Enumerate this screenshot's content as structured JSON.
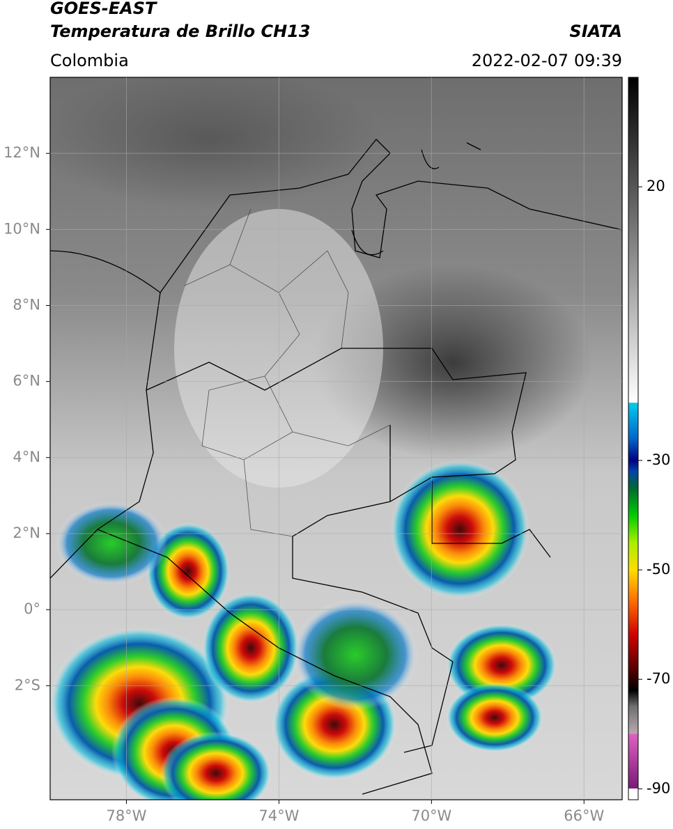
{
  "chart_data": {
    "type": "map",
    "title": "GOES-EAST",
    "subtitle": "Temperatura de Brillo CH13",
    "source": "SIATA",
    "region": "Colombia",
    "timestamp": "2022-02-07 09:39",
    "xlim": [
      -80,
      -65
    ],
    "ylim": [
      -5,
      14
    ],
    "xticks": [
      {
        "value": -78,
        "label": "78°W"
      },
      {
        "value": -74,
        "label": "74°W"
      },
      {
        "value": -70,
        "label": "70°W"
      },
      {
        "value": -66,
        "label": "66°W"
      }
    ],
    "yticks": [
      {
        "value": 12,
        "label": "12°N"
      },
      {
        "value": 10,
        "label": "10°N"
      },
      {
        "value": 8,
        "label": "8°N"
      },
      {
        "value": 6,
        "label": "6°N"
      },
      {
        "value": 4,
        "label": "4°N"
      },
      {
        "value": 2,
        "label": "2°N"
      },
      {
        "value": 0,
        "label": "0°"
      },
      {
        "value": -2,
        "label": "2°S"
      }
    ],
    "grid": true,
    "colorbar": {
      "lim": [
        -92,
        40
      ],
      "ticks": [
        20,
        -30,
        -50,
        -70,
        -90
      ],
      "colors": [
        {
          "value": -92,
          "color": "#ffffff"
        },
        {
          "value": -90,
          "color": "#ffffff"
        },
        {
          "value": -89.9,
          "color": "#7a1a7a"
        },
        {
          "value": -80,
          "color": "#e060c0"
        },
        {
          "value": -79.9,
          "color": "#b8a8b0"
        },
        {
          "value": -75,
          "color": "#707070"
        },
        {
          "value": -72,
          "color": "#000000"
        },
        {
          "value": -68,
          "color": "#5a0000"
        },
        {
          "value": -62,
          "color": "#cc0000"
        },
        {
          "value": -56,
          "color": "#ff6600"
        },
        {
          "value": -50,
          "color": "#ffdd00"
        },
        {
          "value": -45,
          "color": "#aaee00"
        },
        {
          "value": -40,
          "color": "#00cc00"
        },
        {
          "value": -35,
          "color": "#006633"
        },
        {
          "value": -32,
          "color": "#0044aa"
        },
        {
          "value": -30,
          "color": "#000080"
        },
        {
          "value": -26,
          "color": "#0066cc"
        },
        {
          "value": -19.5,
          "color": "#00ccee"
        },
        {
          "value": -19.4,
          "color": "#ffffff"
        },
        {
          "value": 40,
          "color": "#000000"
        }
      ]
    }
  }
}
